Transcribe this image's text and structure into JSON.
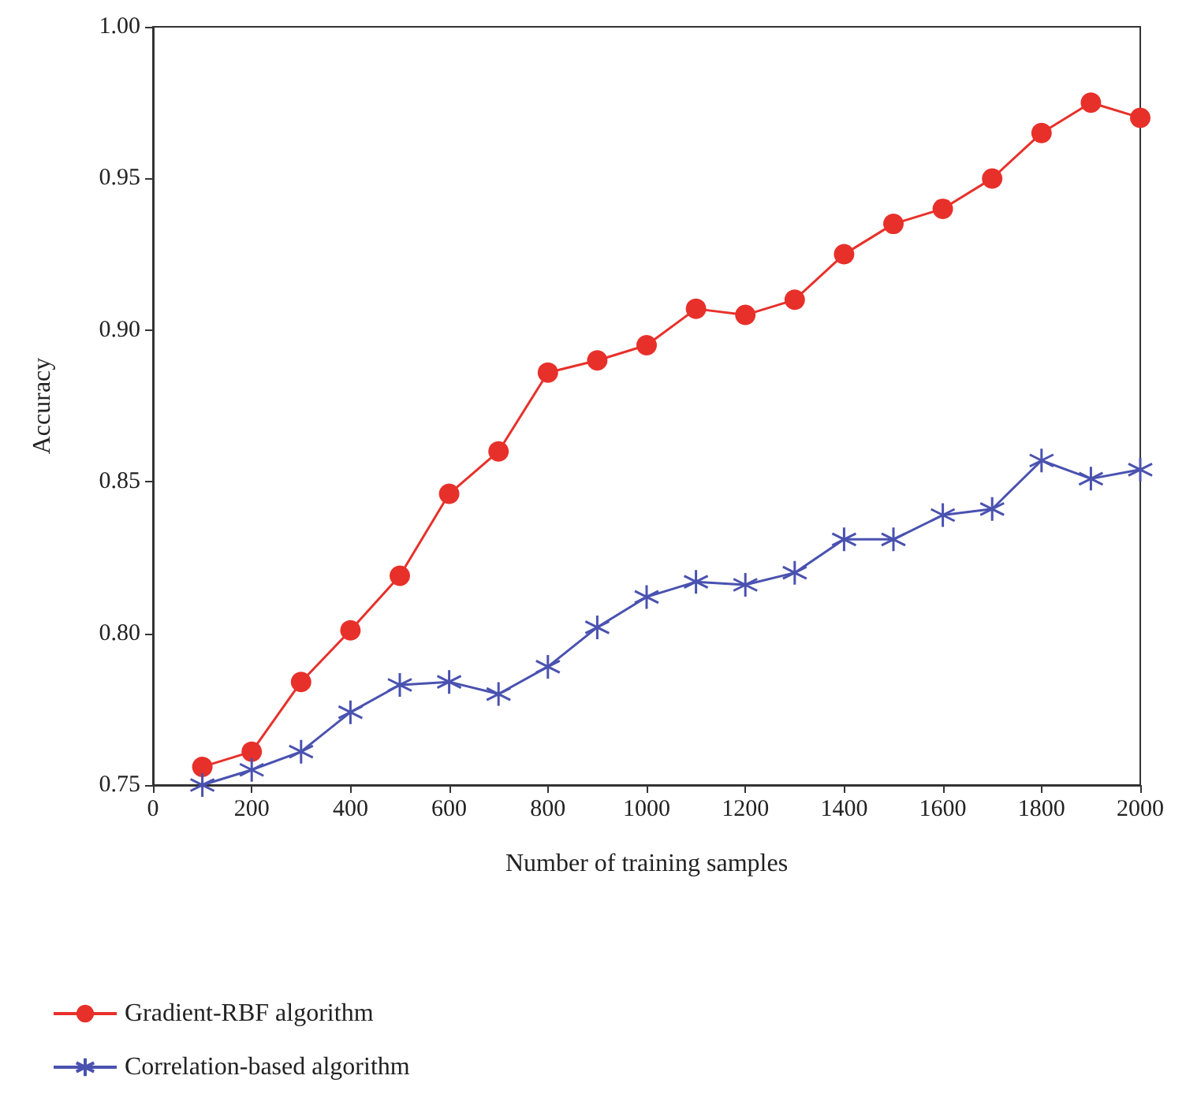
{
  "chart_data": {
    "type": "line",
    "xlabel": "Number of training samples",
    "ylabel": "Accuracy",
    "x": [
      100,
      200,
      300,
      400,
      500,
      600,
      700,
      800,
      900,
      1000,
      1100,
      1200,
      1300,
      1400,
      1500,
      1600,
      1700,
      1800,
      1900,
      2000
    ],
    "series": [
      {
        "name": "Gradient-RBF algorithm",
        "color": "#e8302a",
        "marker": "circle",
        "values": [
          0.756,
          0.761,
          0.784,
          0.801,
          0.819,
          0.846,
          0.86,
          0.886,
          0.89,
          0.895,
          0.907,
          0.905,
          0.91,
          0.925,
          0.935,
          0.94,
          0.95,
          0.965,
          0.975,
          0.97
        ]
      },
      {
        "name": "Correlation-based algorithm",
        "color": "#4a52b0",
        "marker": "cross",
        "values": [
          0.75,
          0.755,
          0.761,
          0.774,
          0.783,
          0.784,
          0.78,
          0.789,
          0.802,
          0.812,
          0.817,
          0.816,
          0.82,
          0.831,
          0.831,
          0.839,
          0.841,
          0.857,
          0.851,
          0.854
        ]
      }
    ],
    "xlim": [
      0,
      2000
    ],
    "xticks": [
      0,
      200,
      400,
      600,
      800,
      1000,
      1200,
      1400,
      1600,
      1800,
      2000
    ],
    "ylim": [
      0.75,
      1.0
    ],
    "yticks": [
      {
        "value": 0.75,
        "label": "0.75"
      },
      {
        "value": 0.8,
        "label": "0.80"
      },
      {
        "value": 0.85,
        "label": "0.85"
      },
      {
        "value": 0.9,
        "label": "0.90"
      },
      {
        "value": 0.95,
        "label": "0.95"
      },
      {
        "value": 1.0,
        "label": "1.00"
      }
    ],
    "grid": false,
    "legend": "bottom",
    "line_style": "solid"
  }
}
